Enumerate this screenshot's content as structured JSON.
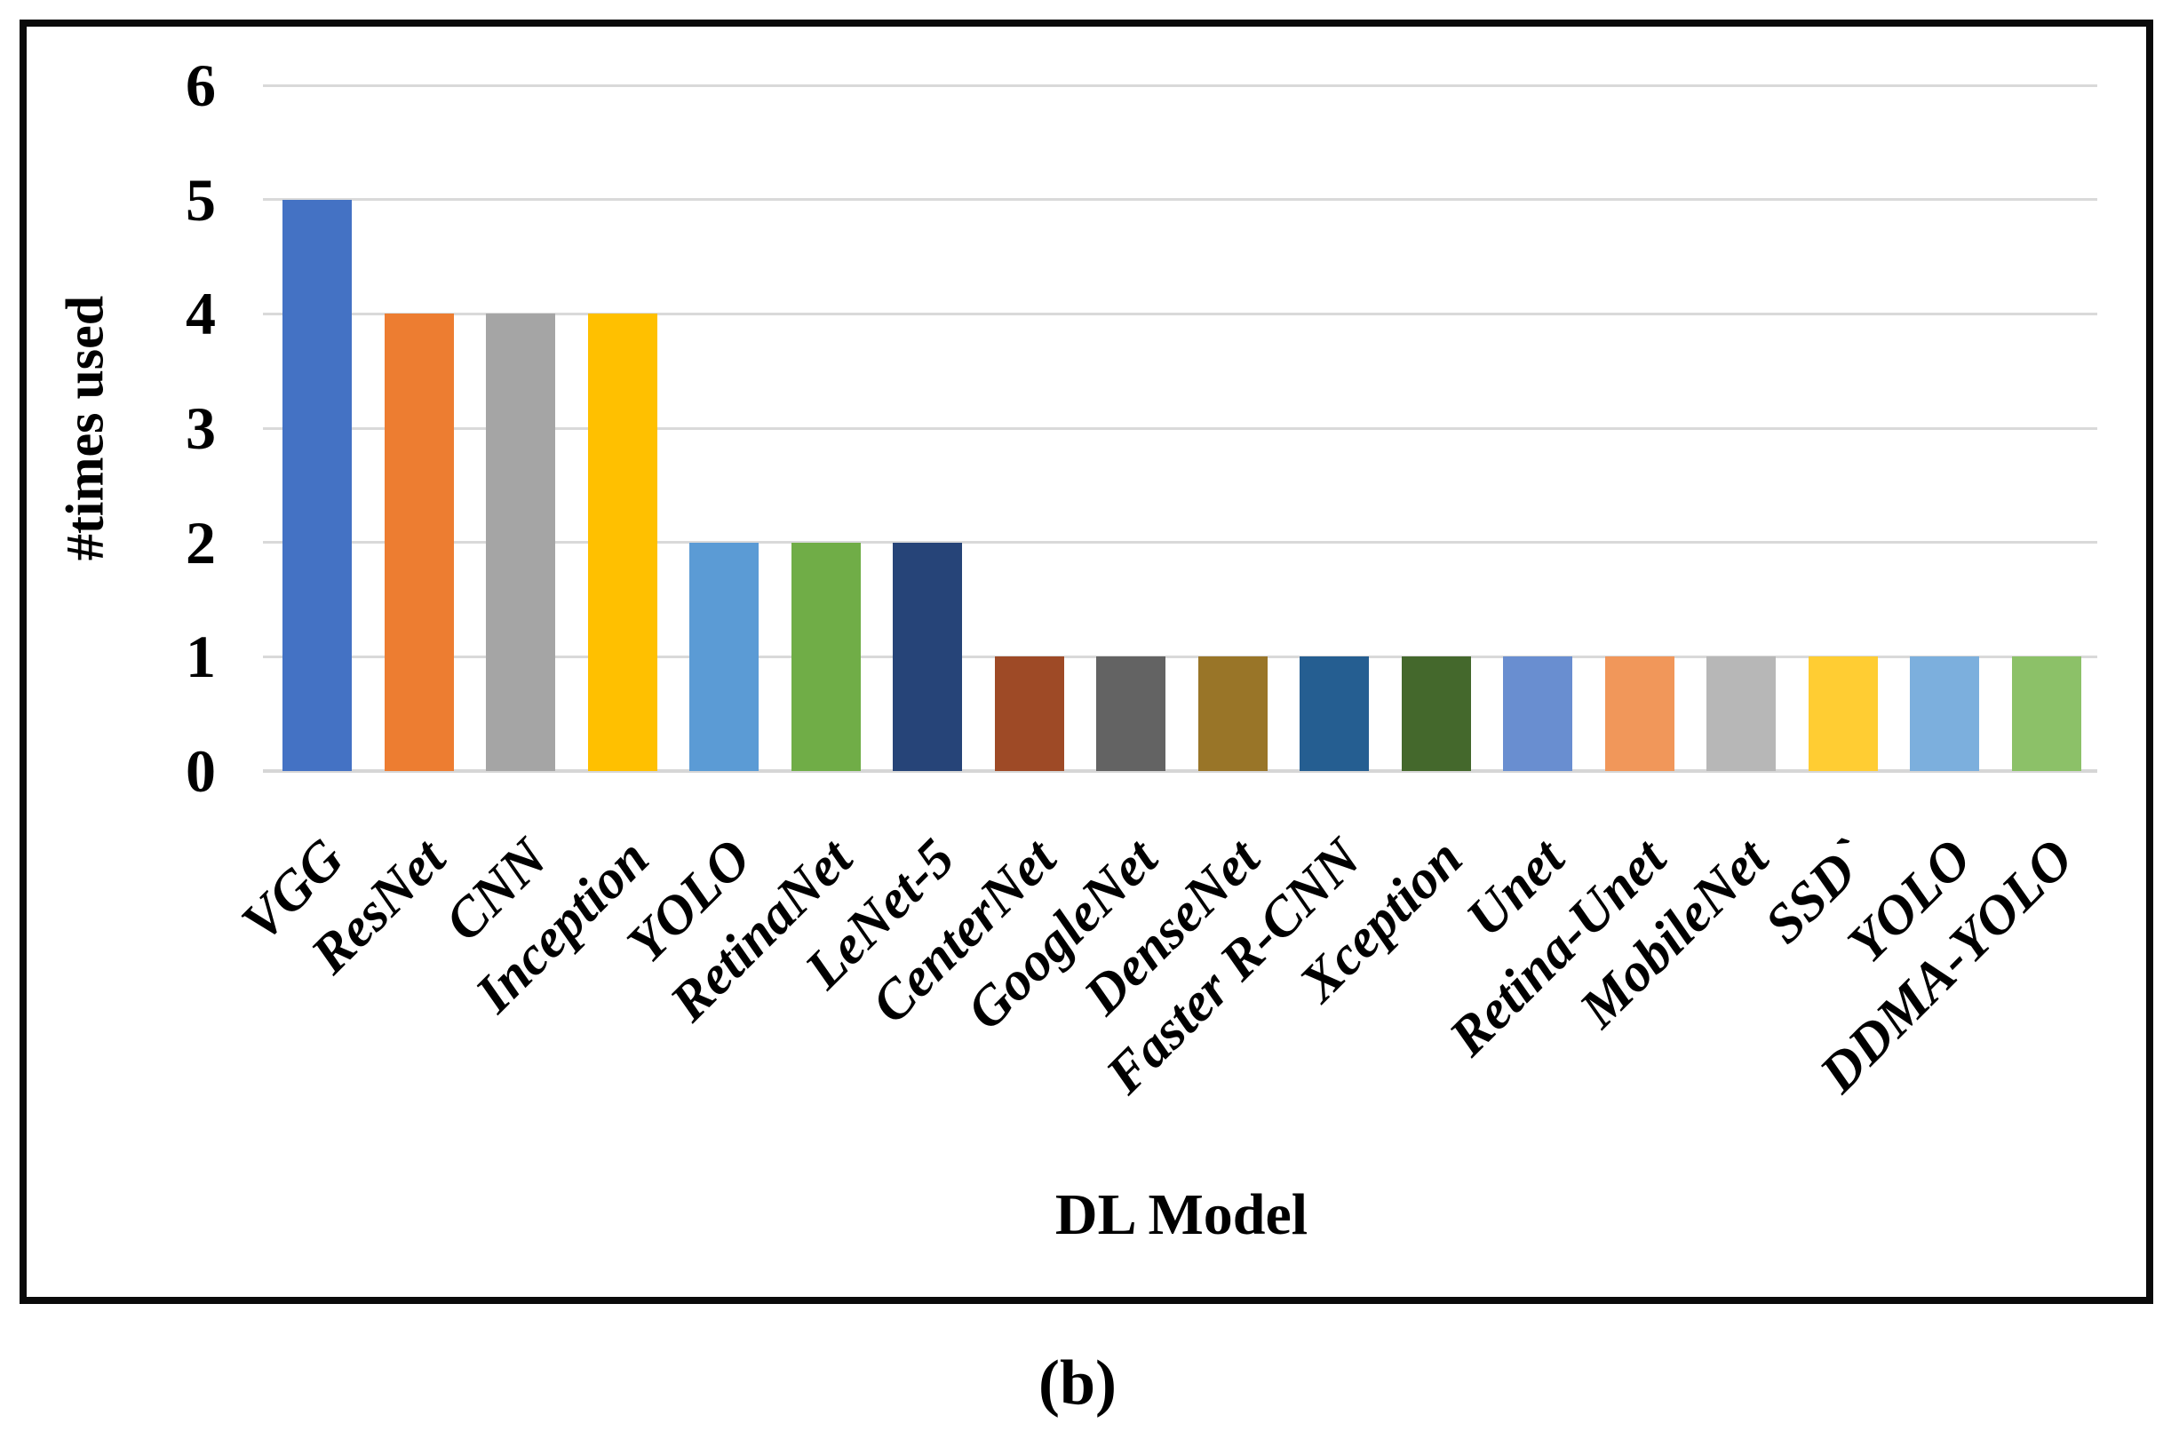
{
  "figure": {
    "caption": "(b)"
  },
  "chart_data": {
    "type": "bar",
    "title": "",
    "xlabel": "DL Model",
    "ylabel": "#times used",
    "categories": [
      "VGG",
      "ResNet",
      "CNN",
      "Inception",
      "YOLO",
      "RetinaNet",
      "LeNet-5",
      "CenterNet",
      "GoogleNet",
      "DenseNet",
      "Faster R-CNN",
      "Xception",
      "Unet",
      "Retina-Unet",
      "MobileNet",
      "SSD`",
      "YOLO",
      "DDMA-YOLO"
    ],
    "values": [
      5,
      4,
      4,
      4,
      2,
      2,
      2,
      1,
      1,
      1,
      1,
      1,
      1,
      1,
      1,
      1,
      1,
      1
    ],
    "bar_colors": [
      "#4472C4",
      "#ED7D31",
      "#A5A5A5",
      "#FFC000",
      "#5B9BD5",
      "#70AD47",
      "#264478",
      "#9E4A26",
      "#636363",
      "#997528",
      "#255E91",
      "#44682C",
      "#698ED0",
      "#F1975A",
      "#B7B7B7",
      "#FFCD33",
      "#7CAFDD",
      "#8CC168"
    ],
    "ylim": [
      0,
      6
    ],
    "yticks": [
      0,
      1,
      2,
      3,
      4,
      5,
      6
    ],
    "grid": "horizontal",
    "gridline_color": "#D9D9D9",
    "baseline_color": "#D6D6D6",
    "frame_border_color": "#0a0a0a",
    "background": "#FFFFFF",
    "legend": "none",
    "x_label_rotation_deg": -45
  }
}
